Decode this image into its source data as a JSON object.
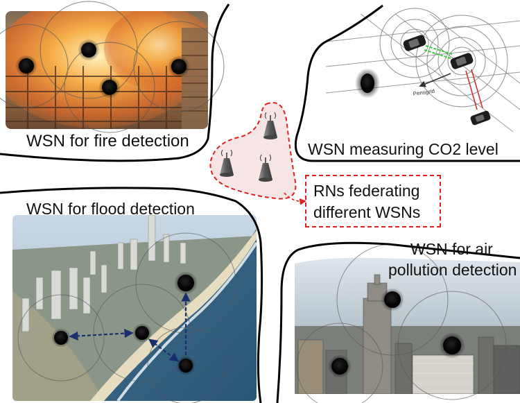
{
  "labels": {
    "fire": "WSN for fire detection",
    "co2": "WSN measuring CO2 level",
    "flood": "WSN for flood detection",
    "air_line1": "WSN for air",
    "air_line2": "pollution detection"
  },
  "rn_box": {
    "line1": "RNs federating",
    "line2": "different WSNs"
  },
  "co2_arrow_label": "Pensgrid",
  "colors": {
    "rn_region": "#e02020",
    "flood_link": "#1a2f6e",
    "co2_green_link": "#37c837",
    "co2_red_link": "#d03030"
  },
  "icons": [
    "sensor-node-icon",
    "relay-node-antenna-icon",
    "car-icon"
  ]
}
